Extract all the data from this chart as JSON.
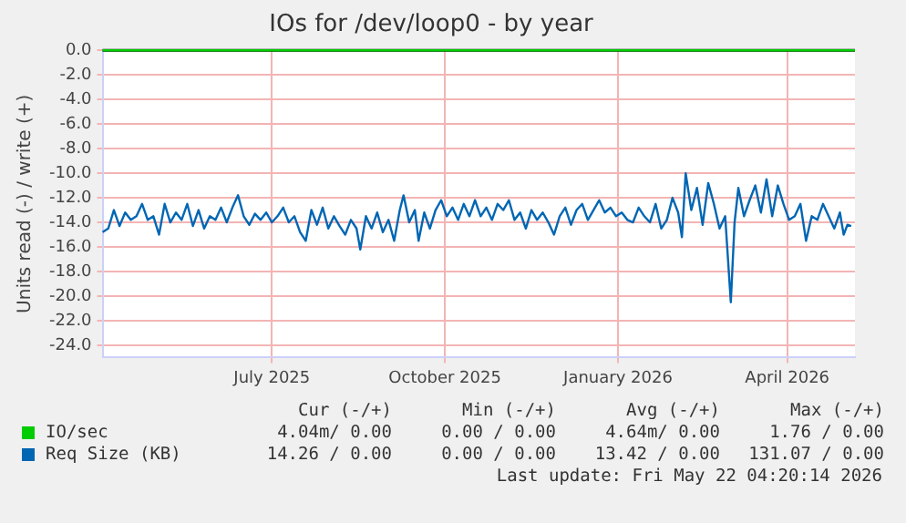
{
  "chart_data": {
    "type": "line",
    "title": "IOs for /dev/loop0 - by year",
    "ylabel": "Units read (-) / write (+)",
    "xlim": [
      "2025-04-17",
      "2026-05-22"
    ],
    "xticks": [
      {
        "value": "2025-07-16",
        "label": "July 2025"
      },
      {
        "value": "2025-10-16",
        "label": "October 2025"
      },
      {
        "value": "2026-01-16",
        "label": "January 2026"
      },
      {
        "value": "2026-04-16",
        "label": "April 2026"
      }
    ],
    "ylim": [
      -25,
      0
    ],
    "yticks": [
      {
        "value": 0,
        "label": "0.0"
      },
      {
        "value": -2,
        "label": "-2.0"
      },
      {
        "value": -4,
        "label": "-4.0"
      },
      {
        "value": -6,
        "label": "-6.0"
      },
      {
        "value": -8,
        "label": "-8.0"
      },
      {
        "value": -10,
        "label": "-10.0"
      },
      {
        "value": -12,
        "label": "-12.0"
      },
      {
        "value": -14,
        "label": "-14.0"
      },
      {
        "value": -16,
        "label": "-16.0"
      },
      {
        "value": -18,
        "label": "-18.0"
      },
      {
        "value": -20,
        "label": "-20.0"
      },
      {
        "value": -22,
        "label": "-22.0"
      },
      {
        "value": -24,
        "label": "-24.0"
      }
    ],
    "grid": true,
    "legend": "bottom",
    "marker": "none",
    "line_style": "solid",
    "ref_lines": [
      {
        "axis": "y",
        "value": 0,
        "color": "#000000"
      }
    ],
    "series": [
      {
        "name": "IO/sec",
        "color": "#00cc00",
        "x": [
          "2025-04-17",
          "2026-05-22"
        ],
        "values": [
          0,
          0
        ]
      },
      {
        "name": "Req Size (KB)",
        "color": "#0066b3",
        "x": [
          "2025-04-17",
          "2025-04-20",
          "2025-04-23",
          "2025-04-26",
          "2025-04-29",
          "2025-05-02",
          "2025-05-05",
          "2025-05-08",
          "2025-05-11",
          "2025-05-14",
          "2025-05-17",
          "2025-05-20",
          "2025-05-23",
          "2025-05-26",
          "2025-05-29",
          "2025-06-01",
          "2025-06-04",
          "2025-06-07",
          "2025-06-10",
          "2025-06-13",
          "2025-06-16",
          "2025-06-19",
          "2025-06-22",
          "2025-06-25",
          "2025-06-28",
          "2025-07-01",
          "2025-07-04",
          "2025-07-07",
          "2025-07-10",
          "2025-07-13",
          "2025-07-16",
          "2025-07-19",
          "2025-07-22",
          "2025-07-25",
          "2025-07-28",
          "2025-07-31",
          "2025-08-03",
          "2025-08-06",
          "2025-08-09",
          "2025-08-12",
          "2025-08-15",
          "2025-08-18",
          "2025-08-21",
          "2025-08-24",
          "2025-08-27",
          "2025-08-30",
          "2025-09-01",
          "2025-09-04",
          "2025-09-07",
          "2025-09-10",
          "2025-09-13",
          "2025-09-16",
          "2025-09-19",
          "2025-09-22",
          "2025-09-24",
          "2025-09-27",
          "2025-09-30",
          "2025-10-02",
          "2025-10-05",
          "2025-10-08",
          "2025-10-11",
          "2025-10-14",
          "2025-10-17",
          "2025-10-20",
          "2025-10-23",
          "2025-10-26",
          "2025-10-29",
          "2025-11-01",
          "2025-11-04",
          "2025-11-07",
          "2025-11-10",
          "2025-11-13",
          "2025-11-16",
          "2025-11-19",
          "2025-11-22",
          "2025-11-25",
          "2025-11-28",
          "2025-12-01",
          "2025-12-04",
          "2025-12-07",
          "2025-12-10",
          "2025-12-13",
          "2025-12-16",
          "2025-12-19",
          "2025-12-22",
          "2025-12-25",
          "2025-12-28",
          "2025-12-31",
          "2026-01-03",
          "2026-01-06",
          "2026-01-09",
          "2026-01-12",
          "2026-01-15",
          "2026-01-18",
          "2026-01-21",
          "2026-01-24",
          "2026-01-27",
          "2026-01-30",
          "2026-02-02",
          "2026-02-05",
          "2026-02-08",
          "2026-02-11",
          "2026-02-14",
          "2026-02-17",
          "2026-02-19",
          "2026-02-21",
          "2026-02-24",
          "2026-02-27",
          "2026-03-02",
          "2026-03-05",
          "2026-03-08",
          "2026-03-11",
          "2026-03-14",
          "2026-03-17",
          "2026-03-19",
          "2026-03-21",
          "2026-03-24",
          "2026-03-27",
          "2026-03-30",
          "2026-04-02",
          "2026-04-05",
          "2026-04-08",
          "2026-04-11",
          "2026-04-14",
          "2026-04-17",
          "2026-04-20",
          "2026-04-23",
          "2026-04-26",
          "2026-04-29",
          "2026-05-02",
          "2026-05-05",
          "2026-05-08",
          "2026-05-11",
          "2026-05-14",
          "2026-05-16",
          "2026-05-18",
          "2026-05-20"
        ],
        "values": [
          -14.8,
          -14.5,
          -13,
          -14.3,
          -13.2,
          -13.8,
          -13.5,
          -12.5,
          -13.8,
          -13.5,
          -15,
          -12.5,
          -14,
          -13.2,
          -13.8,
          -12.5,
          -14.3,
          -13,
          -14.5,
          -13.5,
          -13.8,
          -12.8,
          -14,
          -12.8,
          -11.8,
          -13.5,
          -14.2,
          -13.3,
          -13.8,
          -13.2,
          -14,
          -13.5,
          -12.8,
          -14,
          -13.5,
          -14.8,
          -15.5,
          -13,
          -14.2,
          -12.8,
          -14.5,
          -13.5,
          -14.3,
          -15,
          -13.8,
          -14.5,
          -16.2,
          -13.5,
          -14.5,
          -13.2,
          -14.8,
          -13.8,
          -15.5,
          -13,
          -11.8,
          -14,
          -13,
          -15.5,
          -13.2,
          -14.5,
          -13,
          -12.2,
          -13.5,
          -12.8,
          -13.8,
          -12.5,
          -13.5,
          -12.2,
          -13.5,
          -12.8,
          -13.8,
          -12.5,
          -13,
          -12.2,
          -13.8,
          -13.2,
          -14.5,
          -13,
          -13.8,
          -13.2,
          -14,
          -15,
          -13.5,
          -12.8,
          -14.2,
          -13,
          -12.5,
          -13.8,
          -13,
          -12.2,
          -13.2,
          -12.8,
          -13.5,
          -13.2,
          -13.8,
          -14,
          -12.8,
          -13.5,
          -14,
          -12.5,
          -14.5,
          -13.8,
          -12,
          -13.2,
          -15.2,
          -10,
          -13,
          -11.2,
          -14.2,
          -10.8,
          -12.5,
          -14.5,
          -13.5,
          -20.5,
          -14,
          -11.2,
          -13.5,
          -12.2,
          -11,
          -13.2,
          -10.5,
          -13.5,
          -11,
          -12.5,
          -13.8,
          -13.5,
          -12.5,
          -15.5,
          -13.5,
          -13.8,
          -12.5,
          -13.5,
          -14.5,
          -13.2,
          -15,
          -14.2,
          -14.3
        ]
      }
    ],
    "annotations": [
      "Cur (-/+)",
      "Min (-/+)",
      "Avg (-/+)",
      "Max (-/+)",
      "4.04m/ 0.00",
      "0.00 / 0.00",
      "4.64m/ 0.00",
      "1.76 / 0.00",
      "14.26 / 0.00",
      "0.00 / 0.00",
      "13.42 / 0.00",
      "131.07 / 0.00",
      "Last update: Fri May 22 04:20:14 2026"
    ]
  }
}
